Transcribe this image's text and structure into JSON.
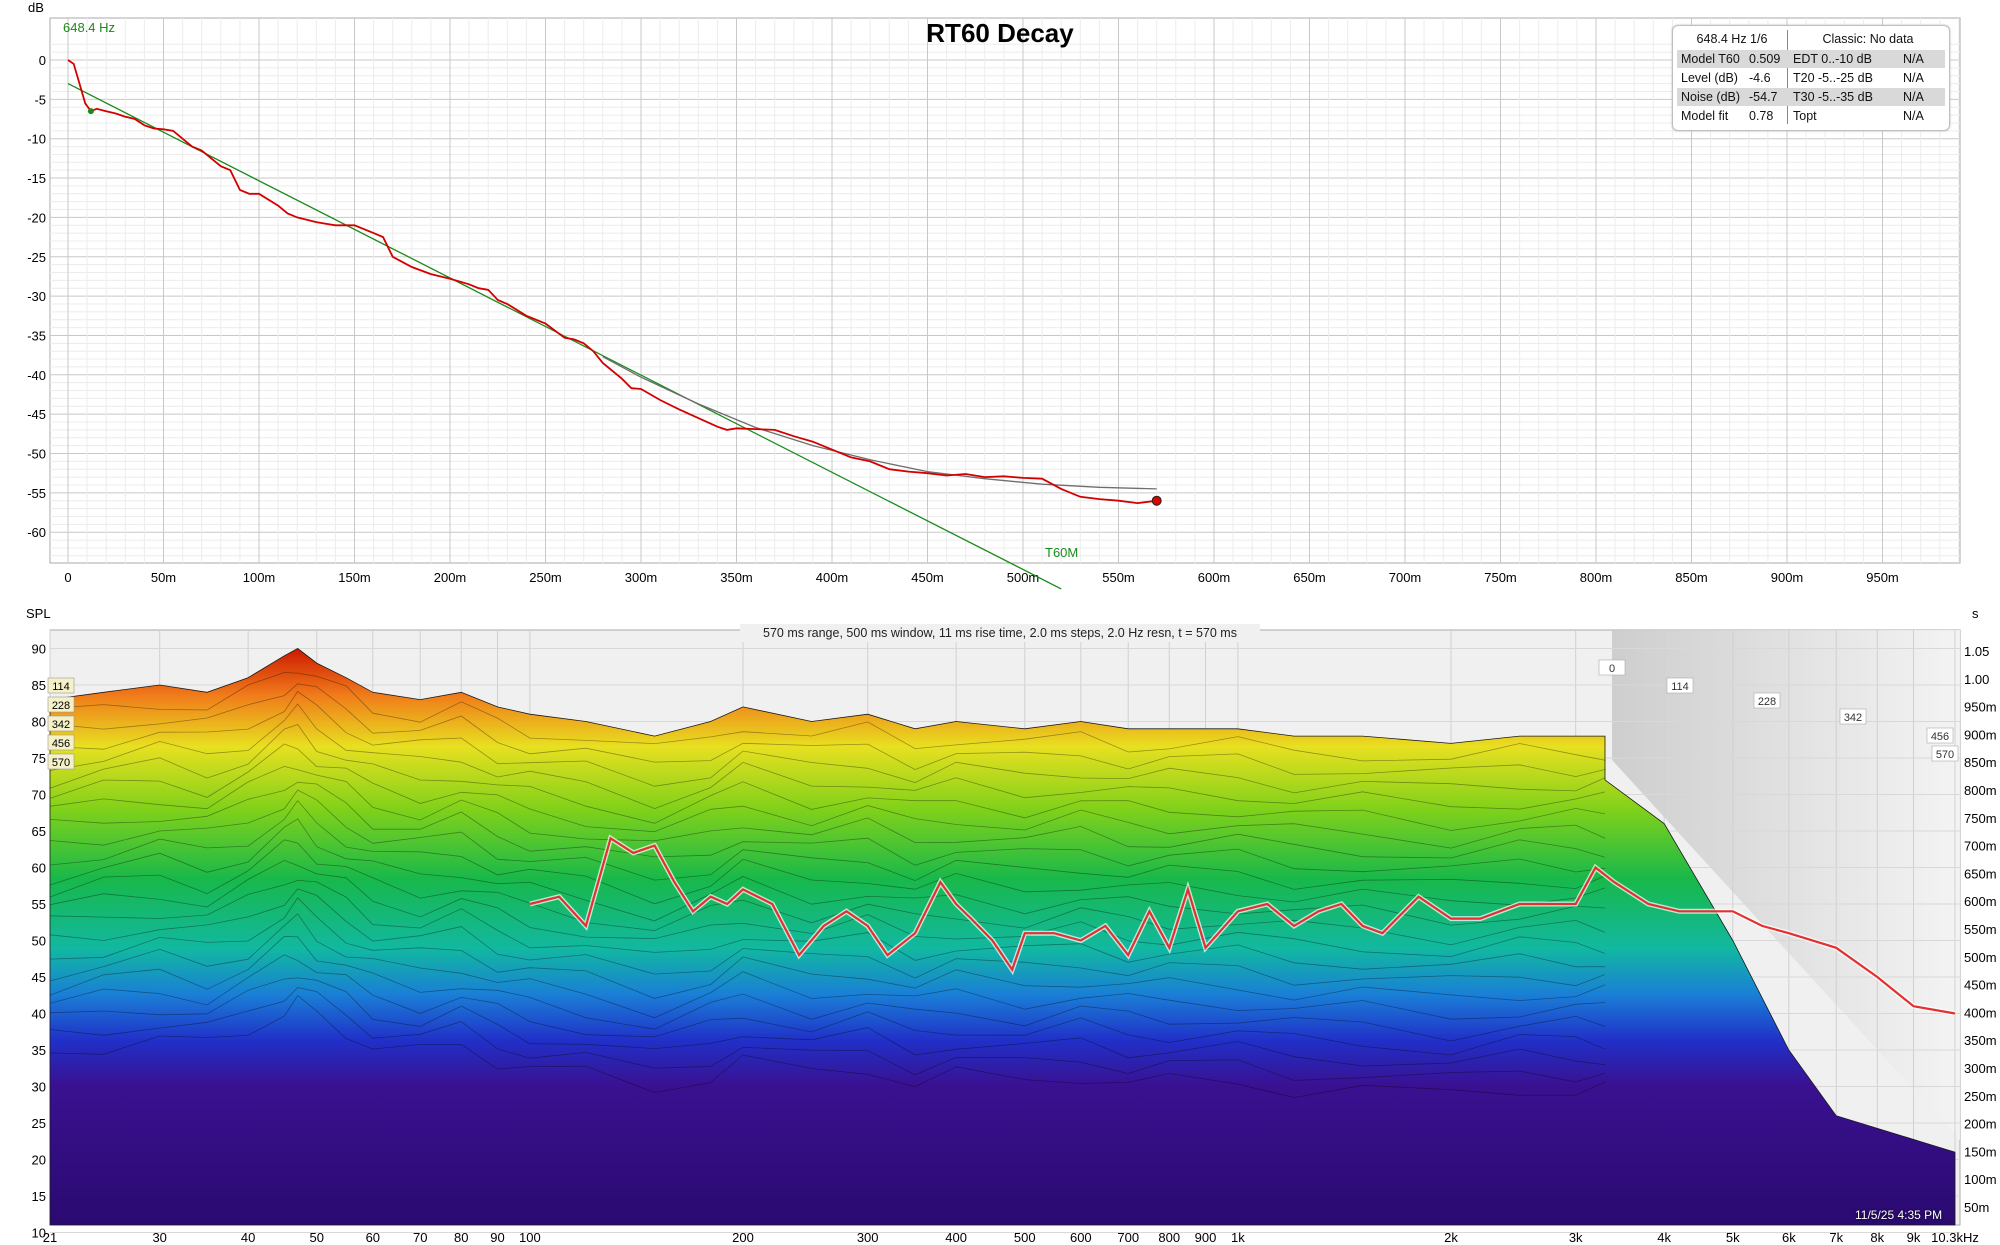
{
  "rt60": {
    "title": "RT60 Decay",
    "freq_label": "648.4 Hz",
    "fit_label": "T60M",
    "y_unit": "dB",
    "info": {
      "head_left": "648.4 Hz 1/6",
      "head_right": "Classic: No data",
      "rows": [
        {
          "k": "Model T60",
          "v": "0.509",
          "k2": "EDT  0..-10 dB",
          "v2": "N/A",
          "shade": true
        },
        {
          "k": "Level (dB)",
          "v": "-4.6",
          "k2": "T20 -5..-25 dB",
          "v2": "N/A",
          "shade": false
        },
        {
          "k": "Noise (dB)",
          "v": "-54.7",
          "k2": "T30 -5..-35 dB",
          "v2": "N/A",
          "shade": true
        },
        {
          "k": "Model fit",
          "v": "0.78",
          "k2": "Topt",
          "v2": "N/A",
          "shade": false
        }
      ]
    }
  },
  "waterfall": {
    "params": "570 ms range, 500 ms window, 11 ms rise time, 2.0 ms steps,  2.0 Hz resn, t = 570 ms",
    "y_unit": "SPL",
    "right_unit": "s",
    "timestamp": "11/5/25 4:35 PM",
    "slice_tags_left": [
      "114",
      "228",
      "342",
      "456",
      "570"
    ],
    "slice_tags_right": [
      "0",
      "114",
      "228",
      "342",
      "456",
      "570"
    ]
  },
  "chart_data": [
    {
      "type": "line",
      "title": "RT60 Decay",
      "xlabel": "",
      "ylabel": "dB",
      "xlim": [
        0,
        1000
      ],
      "ylim": [
        -65,
        3
      ],
      "x_unit": "ms",
      "xticks": [
        "0",
        "50m",
        "100m",
        "150m",
        "200m",
        "250m",
        "300m",
        "350m",
        "400m",
        "450m",
        "500m",
        "550m",
        "600m",
        "650m",
        "700m",
        "750m",
        "800m",
        "850m",
        "900m",
        "950m"
      ],
      "xtick_values": [
        0,
        50,
        100,
        150,
        200,
        250,
        300,
        350,
        400,
        450,
        500,
        550,
        600,
        650,
        700,
        750,
        800,
        850,
        900,
        950
      ],
      "yticks": [
        "0",
        "-5",
        "-10",
        "-15",
        "-20",
        "-25",
        "-30",
        "-35",
        "-40",
        "-45",
        "-50",
        "-55",
        "-60"
      ],
      "ytick_values": [
        0,
        -5,
        -10,
        -15,
        -20,
        -25,
        -30,
        -35,
        -40,
        -45,
        -50,
        -55,
        -60
      ],
      "grid": true,
      "series": [
        {
          "color": "#d40000",
          "x": [
            0,
            3,
            6,
            9,
            12,
            15,
            20,
            25,
            30,
            35,
            40,
            45,
            50,
            55,
            60,
            65,
            70,
            75,
            80,
            85,
            90,
            95,
            100,
            110,
            115,
            120,
            130,
            135,
            140,
            150,
            160,
            165,
            170,
            180,
            190,
            200,
            210,
            215,
            220,
            225,
            230,
            240,
            250,
            260,
            265,
            270,
            275,
            280,
            290,
            295,
            300,
            310,
            320,
            330,
            340,
            345,
            350,
            360,
            370,
            380,
            390,
            400,
            410,
            420,
            430,
            440,
            450,
            460,
            470,
            480,
            490,
            500,
            510,
            520,
            530,
            540,
            550,
            560,
            570
          ],
          "y": [
            0,
            -0.5,
            -3,
            -5.5,
            -6.5,
            -6.2,
            -6.5,
            -6.8,
            -7.2,
            -7.5,
            -8.3,
            -8.7,
            -8.8,
            -9,
            -10,
            -11,
            -11.5,
            -12.5,
            -13.5,
            -14,
            -16.5,
            -17,
            -17,
            -18.5,
            -19.5,
            -20,
            -20.6,
            -20.8,
            -21,
            -21,
            -22,
            -22.5,
            -25,
            -26.3,
            -27.2,
            -27.8,
            -28.5,
            -29,
            -29.2,
            -30.5,
            -31,
            -32.5,
            -33.5,
            -35.3,
            -35.5,
            -36,
            -37,
            -38.5,
            -40.5,
            -41.7,
            -41.8,
            -43.2,
            -44.4,
            -45.5,
            -46.6,
            -47,
            -46.8,
            -46.9,
            -47,
            -47.8,
            -48.5,
            -49.5,
            -50.5,
            -51,
            -52,
            -52.3,
            -52.5,
            -52.8,
            -52.6,
            -53,
            -52.9,
            -53.1,
            -53.2,
            -54.5,
            -55.5,
            -55.8,
            -56,
            -56.3,
            -56
          ]
        },
        {
          "color": "#1a8a1a",
          "x": [
            0,
            520
          ],
          "y": [
            -3,
            -67.2
          ]
        },
        {
          "color": "#6e6e6e",
          "x": [
            280,
            300,
            330,
            360,
            390,
            420,
            450,
            480,
            510,
            540,
            570
          ],
          "y": [
            -37.7,
            -40.3,
            -43.7,
            -46.7,
            -49.0,
            -50.8,
            -52.3,
            -53.2,
            -53.9,
            -54.3,
            -54.5
          ]
        }
      ]
    },
    {
      "type": "area",
      "title": "",
      "xlabel": "",
      "ylabel": "SPL",
      "x_scale": "log",
      "xlim": [
        21,
        10300
      ],
      "ylim": [
        10,
        90
      ],
      "xticks": [
        "21",
        "30",
        "40",
        "50",
        "60",
        "70",
        "80",
        "90",
        "100",
        "200",
        "300",
        "400",
        "500",
        "600",
        "700",
        "800",
        "900",
        "1k",
        "2k",
        "3k",
        "4k",
        "5k",
        "6k",
        "7k",
        "8k",
        "9k",
        "10.3kHz"
      ],
      "xtick_values": [
        21,
        30,
        40,
        50,
        60,
        70,
        80,
        90,
        100,
        200,
        300,
        400,
        500,
        600,
        700,
        800,
        900,
        1000,
        2000,
        3000,
        4000,
        5000,
        6000,
        7000,
        8000,
        9000,
        10300
      ],
      "yticks": [
        "90",
        "85",
        "80",
        "75",
        "70",
        "65",
        "60",
        "55",
        "50",
        "45",
        "40",
        "35",
        "30",
        "25",
        "20",
        "15",
        "10"
      ],
      "ytick_values": [
        90,
        85,
        80,
        75,
        70,
        65,
        60,
        55,
        50,
        45,
        40,
        35,
        30,
        25,
        20,
        15,
        10
      ],
      "right_axis_label": "s",
      "right_ticks": [
        "1.05",
        "1.00",
        "950m",
        "900m",
        "850m",
        "800m",
        "750m",
        "700m",
        "650m",
        "600m",
        "550m",
        "500m",
        "450m",
        "400m",
        "350m",
        "300m",
        "250m",
        "200m",
        "150m",
        "100m",
        "50m"
      ],
      "slice_times_ms": [
        0,
        114,
        228,
        342,
        456,
        570
      ],
      "grid": true,
      "series": [
        {
          "name": "",
          "color": "#e8552a",
          "x": [
            21,
            25,
            30,
            35,
            40,
            45,
            47,
            50,
            55,
            60,
            70,
            80,
            90,
            100,
            120,
            150,
            180,
            200,
            250,
            300,
            350,
            400,
            500,
            600,
            700,
            800,
            1000,
            1200,
            1500,
            2000,
            2500,
            3000,
            3300
          ],
          "y": [
            83,
            84,
            85,
            84,
            86,
            89,
            90,
            88,
            86,
            84,
            83,
            84,
            82,
            81,
            80,
            78,
            80,
            82,
            80,
            81,
            79,
            80,
            79,
            80,
            79,
            79,
            79,
            78,
            78,
            77,
            78,
            78,
            78
          ]
        },
        {
          "name": "",
          "color": "#e33030",
          "x": [
            100,
            110,
            120,
            130,
            140,
            150,
            160,
            170,
            180,
            190,
            200,
            220,
            240,
            260,
            280,
            300,
            320,
            350,
            380,
            400,
            420,
            450,
            480,
            500,
            550,
            600,
            650,
            700,
            750,
            800,
            850,
            900,
            1000,
            1100,
            1200,
            1300,
            1400,
            1500,
            1600,
            1800,
            2000,
            2200,
            2500,
            2800,
            3000,
            3200,
            3400,
            3800,
            4200,
            4500,
            5000,
            5500,
            6000,
            7000,
            8000,
            9000,
            10300
          ],
          "y": [
            55,
            56,
            52,
            64,
            62,
            63,
            58,
            54,
            56,
            55,
            57,
            55,
            48,
            52,
            54,
            52,
            48,
            51,
            58,
            55,
            53,
            50,
            46,
            51,
            51,
            50,
            52,
            48,
            54,
            49,
            57,
            49,
            54,
            55,
            52,
            54,
            55,
            52,
            51,
            56,
            53,
            53,
            55,
            55,
            55,
            60,
            58,
            55,
            54,
            54,
            54,
            52,
            51,
            49,
            45,
            41,
            40
          ]
        }
      ]
    }
  ]
}
